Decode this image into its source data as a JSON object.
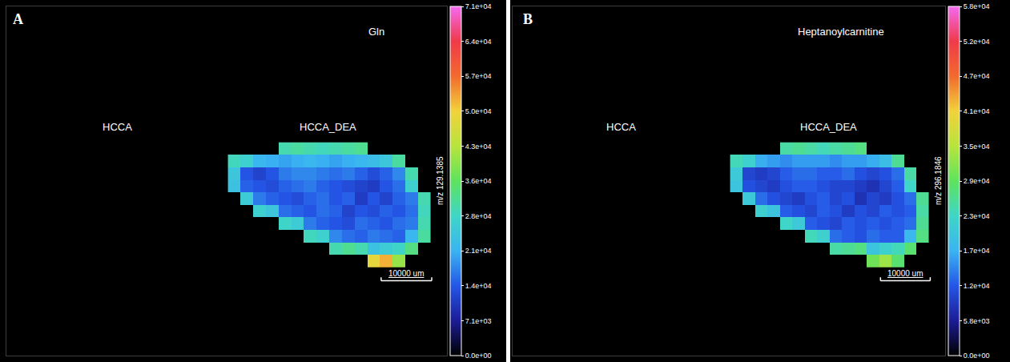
{
  "chart_data": [
    {
      "type": "heatmap",
      "label": "A",
      "title": "Gln",
      "annotations": [
        "HCCA",
        "HCCA_DEA"
      ],
      "colorbar_title": "m/z 129.1385",
      "colorbar_range": [
        0,
        71000
      ],
      "colorbar_ticks": [
        {
          "value": 0,
          "label": "0.0e+00"
        },
        {
          "value": 7100,
          "label": "7.1e+03"
        },
        {
          "value": 14200,
          "label": "1.4e+04"
        },
        {
          "value": 21300,
          "label": "2.1e+04"
        },
        {
          "value": 28400,
          "label": "2.8e+04"
        },
        {
          "value": 35500,
          "label": "3.6e+04"
        },
        {
          "value": 42600,
          "label": "4.3e+04"
        },
        {
          "value": 49700,
          "label": "5.0e+04"
        },
        {
          "value": 56800,
          "label": "5.7e+04"
        },
        {
          "value": 63900,
          "label": "6.4e+04"
        },
        {
          "value": 71000,
          "label": "7.1e+04"
        }
      ],
      "scale_bar": {
        "value": 10000,
        "label": "10000 um"
      },
      "xlim": [
        0,
        87000
      ],
      "ylim": [
        0,
        70000
      ],
      "tick_labels": false,
      "x": [
        45000,
        47500,
        50000,
        52500,
        55000,
        57500,
        60000,
        62500,
        65000,
        67500,
        70000,
        72500,
        75000,
        77500,
        80000,
        82500
      ],
      "y": [
        19000,
        21500,
        24000,
        26500,
        29000,
        31500,
        34000,
        36500,
        39000,
        41500
      ],
      "z": [
        [
          null,
          null,
          null,
          null,
          null,
          null,
          null,
          null,
          null,
          null,
          null,
          48000,
          52000,
          40000,
          null,
          null
        ],
        [
          null,
          null,
          null,
          null,
          null,
          null,
          null,
          null,
          30000,
          32000,
          30000,
          24000,
          26000,
          28000,
          33000,
          null
        ],
        [
          null,
          null,
          null,
          null,
          null,
          null,
          29000,
          27000,
          18000,
          16000,
          15000,
          17000,
          16000,
          15000,
          22000,
          31000
        ],
        [
          null,
          null,
          null,
          null,
          28000,
          26000,
          17000,
          15000,
          14000,
          13000,
          16000,
          15000,
          14000,
          16000,
          17000,
          30000
        ],
        [
          null,
          null,
          27000,
          25000,
          16000,
          15000,
          14000,
          16000,
          15000,
          12000,
          14000,
          13000,
          15000,
          14000,
          16000,
          29000
        ],
        [
          null,
          26000,
          17000,
          15000,
          14000,
          13000,
          15000,
          16000,
          14000,
          15000,
          11000,
          14000,
          12000,
          15000,
          17000,
          30000
        ],
        [
          24000,
          15000,
          14000,
          13000,
          15000,
          16000,
          17000,
          15000,
          14000,
          13000,
          12000,
          11000,
          14000,
          16000,
          27000,
          null
        ],
        [
          25000,
          14000,
          12000,
          14000,
          17000,
          18000,
          18000,
          17000,
          16000,
          17000,
          15000,
          13000,
          15000,
          18000,
          30000,
          null
        ],
        [
          29000,
          27000,
          22000,
          21000,
          20000,
          21000,
          22000,
          21000,
          20000,
          21000,
          22000,
          23000,
          25000,
          31000,
          null,
          null
        ],
        [
          null,
          null,
          null,
          null,
          30000,
          31000,
          30000,
          29000,
          30000,
          31000,
          32000,
          null,
          null,
          null,
          null,
          null
        ]
      ]
    },
    {
      "type": "heatmap",
      "label": "B",
      "title": "Heptanoylcarnitine",
      "annotations": [
        "HCCA",
        "HCCA_DEA"
      ],
      "colorbar_title": "m/z 296.1846",
      "colorbar_range": [
        0,
        58000
      ],
      "colorbar_ticks": [
        {
          "value": 0,
          "label": "0.0e+00"
        },
        {
          "value": 5800,
          "label": "5.8e+03"
        },
        {
          "value": 11600,
          "label": "1.2e+04"
        },
        {
          "value": 17400,
          "label": "1.7e+04"
        },
        {
          "value": 23200,
          "label": "2.3e+04"
        },
        {
          "value": 29000,
          "label": "2.9e+04"
        },
        {
          "value": 34800,
          "label": "3.5e+04"
        },
        {
          "value": 40600,
          "label": "4.1e+04"
        },
        {
          "value": 46400,
          "label": "4.7e+04"
        },
        {
          "value": 52200,
          "label": "5.2e+04"
        },
        {
          "value": 58000,
          "label": "5.8e+04"
        }
      ],
      "scale_bar": {
        "value": 10000,
        "label": "10000 um"
      },
      "xlim": [
        0,
        87000
      ],
      "ylim": [
        0,
        70000
      ],
      "tick_labels": false,
      "x": [
        45000,
        47500,
        50000,
        52500,
        55000,
        57500,
        60000,
        62500,
        65000,
        67500,
        70000,
        72500,
        75000,
        77500,
        80000,
        82500
      ],
      "y": [
        19000,
        21500,
        24000,
        26500,
        29000,
        31500,
        34000,
        36500,
        39000,
        41500
      ],
      "z": [
        [
          null,
          null,
          null,
          null,
          null,
          null,
          null,
          null,
          null,
          null,
          null,
          30000,
          33000,
          28000,
          null,
          null
        ],
        [
          null,
          null,
          null,
          null,
          null,
          null,
          null,
          null,
          25000,
          26000,
          27000,
          20000,
          22000,
          24000,
          28000,
          null
        ],
        [
          null,
          null,
          null,
          null,
          null,
          null,
          24000,
          22000,
          13000,
          12000,
          11000,
          13000,
          12000,
          12000,
          18000,
          27000
        ],
        [
          null,
          null,
          null,
          null,
          23000,
          21000,
          12000,
          11000,
          10000,
          12000,
          11000,
          12000,
          11000,
          12000,
          13000,
          26000
        ],
        [
          null,
          null,
          22000,
          20000,
          12000,
          11000,
          10000,
          12000,
          11000,
          9000,
          11000,
          10000,
          12000,
          11000,
          12000,
          25000
        ],
        [
          null,
          21000,
          13000,
          11000,
          10000,
          9000,
          11000,
          12000,
          10000,
          11000,
          8000,
          10000,
          9000,
          11000,
          13000,
          26000
        ],
        [
          20000,
          11000,
          10000,
          9000,
          11000,
          12000,
          12000,
          11000,
          10000,
          10000,
          9000,
          8000,
          10000,
          12000,
          23000,
          null
        ],
        [
          21000,
          10000,
          9000,
          10000,
          12000,
          13000,
          13000,
          12000,
          12000,
          13000,
          11000,
          10000,
          11000,
          13000,
          25000,
          null
        ],
        [
          24000,
          22000,
          17000,
          16000,
          15000,
          16000,
          16000,
          16000,
          15000,
          16000,
          16000,
          17000,
          19000,
          26000,
          null,
          null
        ],
        [
          null,
          null,
          null,
          null,
          25000,
          26000,
          25000,
          24000,
          25000,
          26000,
          27000,
          null,
          null,
          null,
          null,
          null
        ]
      ]
    }
  ]
}
